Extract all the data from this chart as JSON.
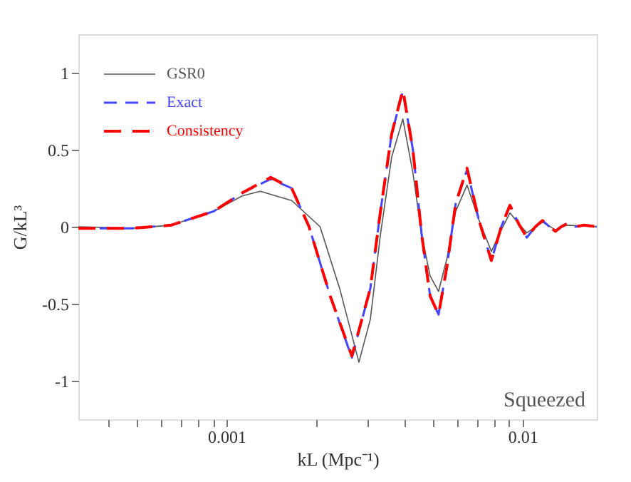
{
  "chart_data": {
    "type": "line",
    "xlabel": "kL (Mpc⁻¹)",
    "ylabel": "G/kL³",
    "annotations": [
      "Squeezed"
    ],
    "log": "x",
    "xlim": [
      0.000316,
      0.0178
    ],
    "ylim": [
      -1.25,
      1.25
    ],
    "xticks": [
      {
        "value": 0.0004,
        "label": null
      },
      {
        "value": 0.0005,
        "label": null
      },
      {
        "value": 0.0006,
        "label": null
      },
      {
        "value": 0.0007,
        "label": null
      },
      {
        "value": 0.0008,
        "label": null
      },
      {
        "value": 0.0009,
        "label": null
      },
      0.001,
      {
        "value": 0.002,
        "label": null
      },
      {
        "value": 0.003,
        "label": null
      },
      {
        "value": 0.004,
        "label": null
      },
      {
        "value": 0.005,
        "label": null
      },
      {
        "value": 0.006,
        "label": null
      },
      {
        "value": 0.007,
        "label": null
      },
      {
        "value": 0.008,
        "label": null
      },
      {
        "value": 0.009,
        "label": null
      },
      0.01
    ],
    "yticks": [
      -1,
      -0.5,
      0,
      0.5,
      1
    ],
    "grid": false,
    "legend": "top left",
    "series": [
      {
        "name": "GSR0",
        "color": "#555555",
        "line_style": "solid",
        "x": [
          0.000316,
          0.000482,
          0.00065,
          0.000905,
          0.00113,
          0.0013,
          0.00166,
          0.00207,
          0.00241,
          0.0028,
          0.00306,
          0.00331,
          0.00361,
          0.00394,
          0.00426,
          0.00456,
          0.00487,
          0.0052,
          0.00556,
          0.00594,
          0.00649,
          0.0071,
          0.00784,
          0.00847,
          0.00906,
          0.00969,
          0.01033,
          0.01167,
          0.0129,
          0.01411,
          0.0178
        ],
        "values": [
          0,
          -0.01,
          0.01,
          0.1,
          0.2,
          0.23,
          0.17,
          0.0,
          -0.4,
          -0.88,
          -0.6,
          -0.05,
          0.45,
          0.7,
          0.35,
          -0.05,
          -0.32,
          -0.42,
          -0.2,
          0.1,
          0.27,
          0.05,
          -0.16,
          -0.02,
          0.09,
          0.02,
          -0.04,
          0.03,
          -0.02,
          0.01,
          0.0
        ]
      },
      {
        "name": "Exact",
        "color": "#4444ff",
        "line_style": "dashed",
        "x": [
          0.000316,
          0.000482,
          0.00065,
          0.000905,
          0.00113,
          0.00141,
          0.00166,
          0.0019,
          0.00224,
          0.00265,
          0.00306,
          0.00331,
          0.00361,
          0.00394,
          0.00426,
          0.00456,
          0.00487,
          0.0052,
          0.00556,
          0.00594,
          0.00649,
          0.0071,
          0.00784,
          0.00847,
          0.00906,
          0.00969,
          0.01033,
          0.01104,
          0.01167,
          0.01233,
          0.0129,
          0.01349,
          0.01411,
          0.01507,
          0.0161,
          0.0178
        ],
        "values": [
          -0.01,
          -0.01,
          0.01,
          0.1,
          0.22,
          0.31,
          0.25,
          0.0,
          -0.45,
          -0.85,
          -0.4,
          0.1,
          0.6,
          0.88,
          0.5,
          -0.05,
          -0.45,
          -0.57,
          -0.25,
          0.15,
          0.37,
          0.05,
          -0.22,
          0.0,
          0.14,
          0.02,
          -0.07,
          0.0,
          0.04,
          0.0,
          -0.03,
          0.0,
          0.02,
          0.0,
          0.01,
          0.0
        ]
      },
      {
        "name": "Consistency",
        "color": "#ff0000",
        "line_style": "dashed",
        "x": [
          0.000316,
          0.000482,
          0.00065,
          0.000905,
          0.00113,
          0.00141,
          0.00166,
          0.0019,
          0.00224,
          0.00265,
          0.00306,
          0.00331,
          0.00361,
          0.00394,
          0.00426,
          0.00456,
          0.00487,
          0.0052,
          0.00556,
          0.00594,
          0.00649,
          0.0071,
          0.00784,
          0.00847,
          0.00906,
          0.00969,
          0.01033,
          0.01104,
          0.01167,
          0.01233,
          0.0129,
          0.01349,
          0.01411,
          0.01507,
          0.0161,
          0.0178
        ],
        "values": [
          -0.01,
          -0.01,
          0.01,
          0.1,
          0.22,
          0.32,
          0.25,
          0.0,
          -0.45,
          -0.84,
          -0.4,
          0.1,
          0.6,
          0.89,
          0.5,
          -0.05,
          -0.45,
          -0.57,
          -0.25,
          0.15,
          0.38,
          0.05,
          -0.22,
          0.0,
          0.14,
          0.02,
          -0.07,
          0.0,
          0.04,
          0.0,
          -0.03,
          0.0,
          0.02,
          0.0,
          0.01,
          0.0
        ]
      }
    ]
  }
}
